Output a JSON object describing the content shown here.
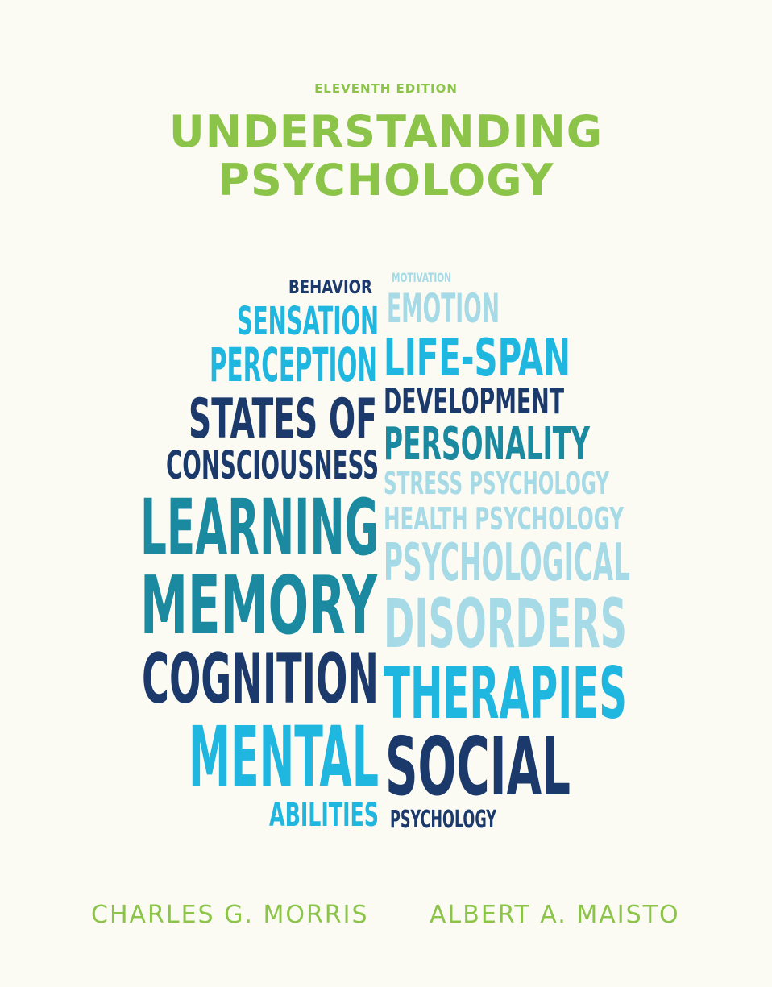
{
  "edition": "ELEVENTH EDITION",
  "title": {
    "line1": "UNDERSTANDING",
    "line2": "PSYCHOLOGY"
  },
  "authors": [
    "CHARLES G. MORRIS",
    "ALBERT A. MAISTO"
  ],
  "colors": {
    "background": "#fbfbf3",
    "title_green": "#8cc44a",
    "navy": "#1b3a6b",
    "teal": "#1b8aa0",
    "sky": "#1fb6e0",
    "light_aqua": "#a6dae6"
  },
  "brain_words": {
    "left": [
      "BEHAVIOR",
      "SENSATION",
      "PERCEPTION",
      "STATES OF",
      "CONSCIOUSNESS",
      "LEARNING",
      "MEMORY",
      "COGNITION",
      "MENTAL",
      "ABILITIES"
    ],
    "right": [
      "MOTIVATION",
      "EMOTION",
      "LIFE-SPAN",
      "DEVELOPMENT",
      "PERSONALITY",
      "STRESS PSYCHOLOGY",
      "HEALTH PSYCHOLOGY",
      "PSYCHOLOGICAL",
      "DISORDERS",
      "THERAPIES",
      "SOCIAL",
      "PSYCHOLOGY"
    ]
  }
}
